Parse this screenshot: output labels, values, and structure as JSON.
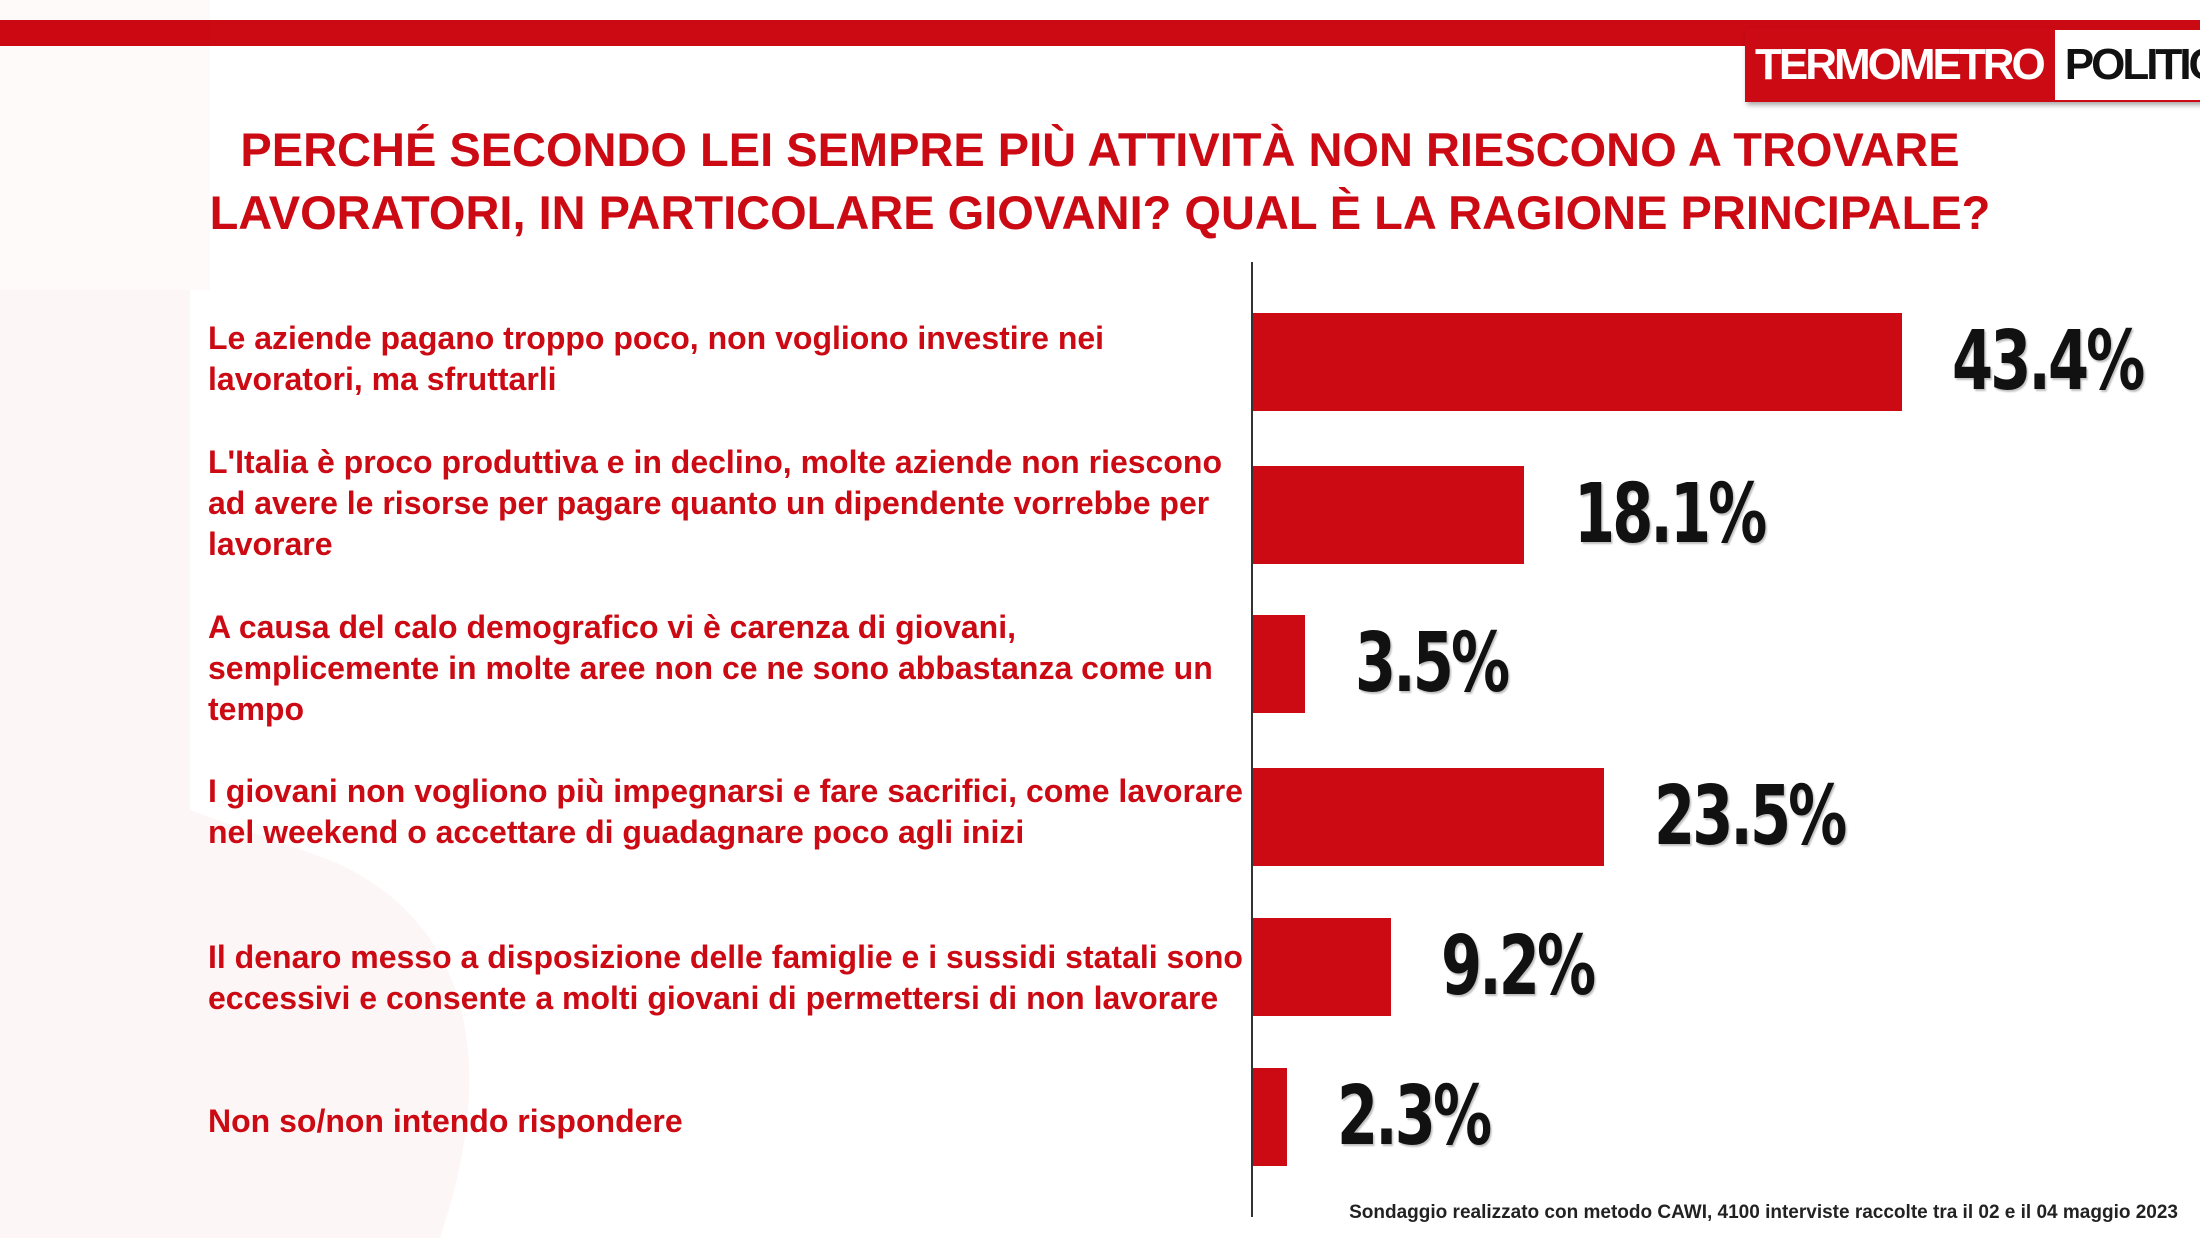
{
  "brand": {
    "logo_left": "TERMOMETRO",
    "logo_right": "POLITICO",
    "accent": "#cc0a14"
  },
  "title_line1": "PERCHÉ SECONDO LEI SEMPRE PIÙ ATTIVITÀ NON RIESCONO A TROVARE",
  "title_line2": "LAVORATORI, IN PARTICOLARE GIOVANI? QUAL È LA RAGIONE PRINCIPALE?",
  "footnote": "Sondaggio realizzato con metodo CAWI, 4100 interviste raccolte tra il 02 e il 04 maggio 2023",
  "chart_data": {
    "type": "bar",
    "orientation": "horizontal",
    "categories": [
      "Le aziende pagano troppo poco, non vogliono investire nei lavoratori, ma sfruttarli",
      "L'Italia è proco produttiva e in declino, molte aziende non riescono ad avere le risorse per pagare quanto un dipendente vorrebbe per lavorare",
      "A causa del calo demografico vi è carenza di giovani, semplicemente in molte aree non ce ne sono abbastanza come un tempo",
      "I giovani non vogliono più impegnarsi e fare sacrifici, come lavorare nel weekend o accettare di guadagnare poco agli inizi",
      "Il denaro messo a disposizione delle famiglie e i sussidi statali sono eccessivi e consente a molti giovani di permettersi di non lavorare",
      "Non so/non intendo rispondere"
    ],
    "values": [
      43.4,
      18.1,
      3.5,
      23.5,
      9.2,
      2.3
    ],
    "value_labels": [
      "43.4%",
      "18.1%",
      "3.5%",
      "23.5%",
      "9.2%",
      "2.3%"
    ],
    "bar_color": "#cc0a14",
    "grid": false
  }
}
